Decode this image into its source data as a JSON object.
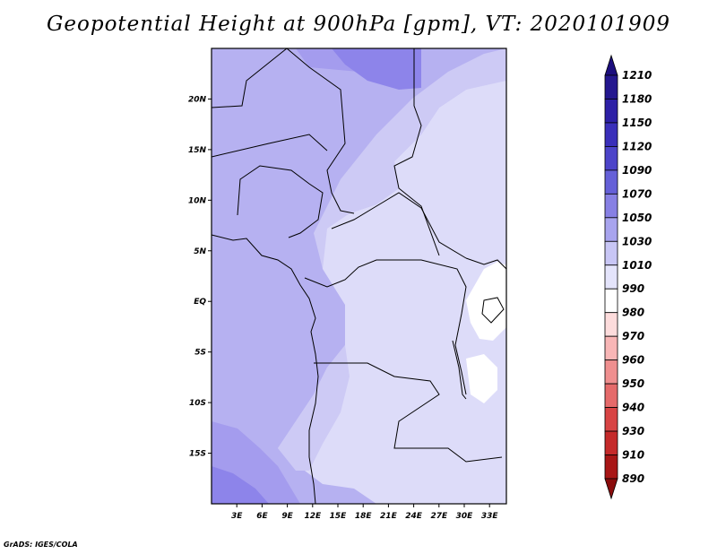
{
  "title": "Geopotential Height at 900hPa [gpm], VT: 2020101909",
  "credit": "GrADS: IGES/COLA",
  "chart_data": {
    "type": "heatmap",
    "variable": "Geopotential Height at 900hPa",
    "units": "gpm",
    "valid_time": "2020101909",
    "x_ticks": [
      "3E",
      "6E",
      "9E",
      "12E",
      "15E",
      "18E",
      "21E",
      "24E",
      "27E",
      "30E",
      "33E"
    ],
    "x_tick_values": [
      3,
      6,
      9,
      12,
      15,
      18,
      21,
      24,
      27,
      30,
      33
    ],
    "y_ticks": [
      "20N",
      "15N",
      "10N",
      "5N",
      "EQ",
      "5S",
      "10S",
      "15S"
    ],
    "y_tick_values": [
      20,
      15,
      10,
      5,
      0,
      -5,
      -10,
      -15
    ],
    "lon_range": [
      0,
      35
    ],
    "lat_range": [
      -20,
      25
    ],
    "colorbar": {
      "labels": [
        "1210",
        "1180",
        "1150",
        "1120",
        "1090",
        "1070",
        "1050",
        "1030",
        "1010",
        "990",
        "980",
        "970",
        "960",
        "950",
        "940",
        "930",
        "910",
        "890"
      ],
      "colors": [
        "#1c0e7e",
        "#24178f",
        "#2d20a6",
        "#3a2fba",
        "#4c44c9",
        "#6560d8",
        "#8780e4",
        "#a8a4ee",
        "#c8c6f5",
        "#e4e4fb",
        "#ffffff",
        "#fddcdc",
        "#f8b6b6",
        "#ef8f8f",
        "#e56a6a",
        "#d84444",
        "#c52a2a",
        "#a81616",
        "#8a0c0c"
      ]
    },
    "fill_colors": {
      "level_1090": "#8d84ea",
      "level_1070": "#a49cee",
      "level_1050": "#b6b1f1",
      "level_1030": "#cdcaf5",
      "level_1010": "#dddcf9",
      "level_990": "#ffffff"
    }
  }
}
